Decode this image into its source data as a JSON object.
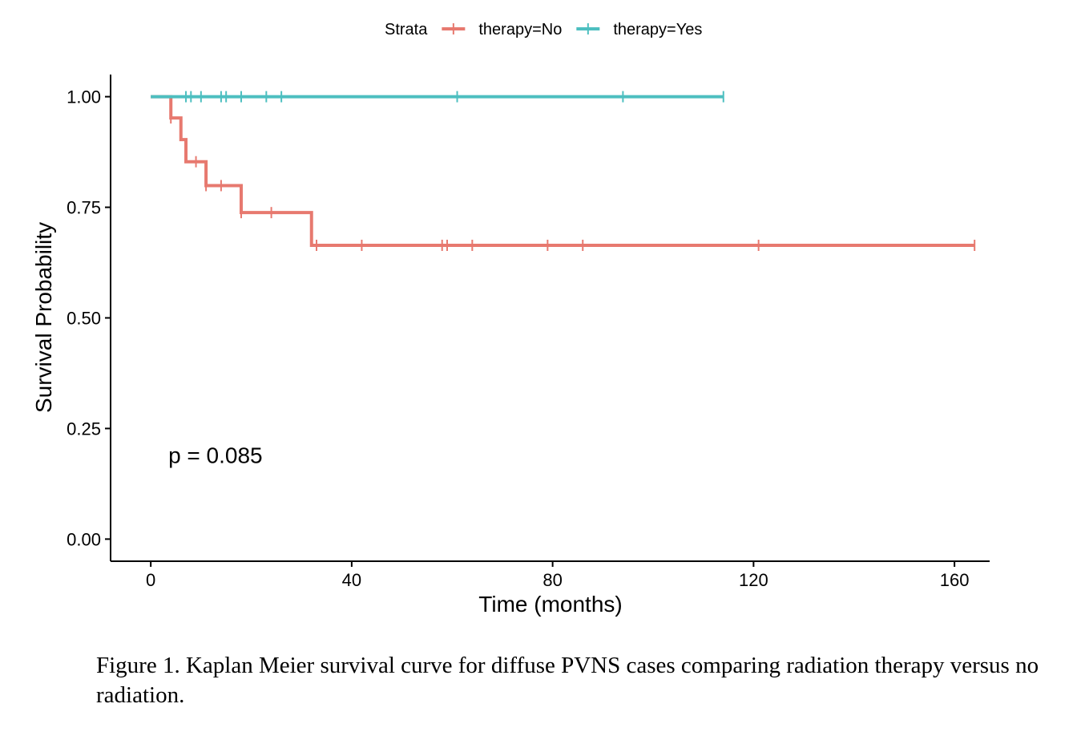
{
  "chart_data": {
    "type": "line",
    "subtype": "kaplan-meier step",
    "xlabel": "Time (months)",
    "ylabel": "Survival Probability",
    "xlim": [
      -8,
      167
    ],
    "ylim": [
      -0.05,
      1.05
    ],
    "xticks": [
      0,
      40,
      80,
      120,
      160
    ],
    "xtick_labels": [
      "0",
      "40",
      "80",
      "120",
      "160"
    ],
    "yticks": [
      0,
      0.25,
      0.5,
      0.75,
      1.0
    ],
    "ytick_labels": [
      "0.00",
      "0.25",
      "0.50",
      "0.75",
      "1.00"
    ],
    "grid": false,
    "legend": {
      "title": "Strata",
      "placement": "top"
    },
    "annotation": {
      "text": "p = 0.085",
      "x": 3.5,
      "y": 0.19
    },
    "series": [
      {
        "name": "therapy=No",
        "color": "#E7796F",
        "steps": [
          [
            0,
            1.0
          ],
          [
            4,
            0.952
          ],
          [
            6,
            0.903
          ],
          [
            7,
            0.853
          ],
          [
            11,
            0.799
          ],
          [
            18,
            0.738
          ],
          [
            32,
            0.664
          ],
          [
            164,
            0.664
          ]
        ],
        "censor_times": [
          4,
          9,
          11,
          14,
          18,
          24,
          33,
          42,
          58,
          59,
          64,
          79,
          86,
          121,
          164
        ]
      },
      {
        "name": "therapy=Yes",
        "color": "#4DBFC0",
        "steps": [
          [
            0,
            1.0
          ],
          [
            114,
            1.0
          ]
        ],
        "censor_times": [
          7,
          8,
          10,
          14,
          15,
          18,
          23,
          26,
          61,
          94,
          114
        ]
      }
    ]
  },
  "caption": "Figure 1. Kaplan Meier survival curve for diffuse PVNS cases comparing radiation therapy versus no radiation."
}
